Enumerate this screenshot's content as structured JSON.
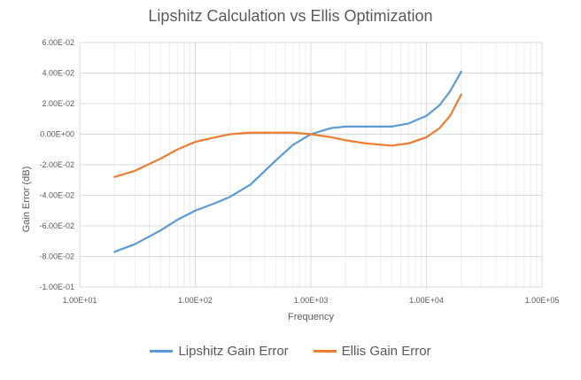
{
  "chart_data": {
    "type": "line",
    "title": "Lipshitz Calculation vs Ellis Optimization",
    "xlabel": "Frequency",
    "ylabel": "Gain Error (dB)",
    "x_scale": "log",
    "xlim": [
      10,
      100000
    ],
    "ylim": [
      -0.1,
      0.06
    ],
    "x_ticks": [
      "1.00E+01",
      "1.00E+02",
      "1.00E+03",
      "1.00E+04",
      "1.00E+05"
    ],
    "y_ticks": [
      "6.00E-02",
      "4.00E-02",
      "2.00E-02",
      "0.00E+00",
      "-2.00E-02",
      "-4.00E-02",
      "-6.00E-02",
      "-8.00E-02",
      "-1.00E-01"
    ],
    "grid": true,
    "legend_position": "bottom",
    "series": [
      {
        "name": "Lipshitz Gain Error",
        "color": "#5B9BD5",
        "x": [
          20,
          30,
          50,
          70,
          100,
          150,
          200,
          300,
          500,
          700,
          1000,
          1500,
          2000,
          3000,
          5000,
          7000,
          10000,
          13000,
          16000,
          20000
        ],
        "values": [
          -0.077,
          -0.072,
          -0.063,
          -0.056,
          -0.05,
          -0.045,
          -0.041,
          -0.033,
          -0.017,
          -0.007,
          0.0,
          0.004,
          0.005,
          0.005,
          0.005,
          0.007,
          0.012,
          0.019,
          0.028,
          0.041
        ]
      },
      {
        "name": "Ellis Gain Error",
        "color": "#ED7D31",
        "x": [
          20,
          30,
          50,
          70,
          100,
          150,
          200,
          300,
          500,
          700,
          1000,
          1500,
          2000,
          3000,
          5000,
          7000,
          10000,
          13000,
          16000,
          20000
        ],
        "values": [
          -0.028,
          -0.024,
          -0.016,
          -0.01,
          -0.005,
          -0.002,
          0.0,
          0.001,
          0.001,
          0.001,
          0.0,
          -0.002,
          -0.004,
          -0.006,
          -0.0075,
          -0.006,
          -0.002,
          0.004,
          0.012,
          0.026
        ]
      }
    ]
  }
}
